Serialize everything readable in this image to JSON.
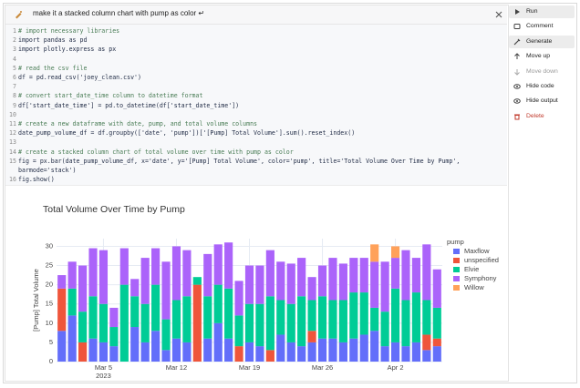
{
  "prompt": "make it a stacked column chart with pump as color ↵",
  "code": [
    {
      "number": 1,
      "text": "# import necessary libraries"
    },
    {
      "number": 2,
      "text": "import pandas as pd"
    },
    {
      "number": 3,
      "text": "import plotly.express as px"
    },
    {
      "number": 4
    },
    {
      "number": 5,
      "text": "# read the csv file"
    },
    {
      "number": 6,
      "text": "df = pd.read_csv('joey_clean.csv')"
    },
    {
      "number": 7
    },
    {
      "number": 8,
      "text": "# convert start_date_time column to datetime format"
    },
    {
      "number": 9,
      "text": "df['start_date_time'] = pd.to_datetime(df['start_date_time'])"
    },
    {
      "number": 10
    },
    {
      "number": 11,
      "text": "# create a new dataframe with date, pump, and total volume columns"
    },
    {
      "number": 12,
      "text": "date_pump_volume_df = df.groupby(['date', 'pump'])['[Pump] Total Volume'].sum().reset_index()"
    },
    {
      "number": 13
    },
    {
      "number": 14,
      "text": "# create a stacked column chart of total volume over time with pump as color"
    },
    {
      "number": 15,
      "text": "fig = px.bar(date_pump_volume_df, x='date', y='[Pump] Total Volume', color='pump', title='Total Volume Over Time by Pump',"
    },
    {
      "text": "barmode='stack')"
    },
    {
      "number": 16,
      "text": "fig.show()"
    }
  ],
  "menu": [
    "Run",
    "Comment",
    "Generate",
    "Move up",
    "Move down",
    "Hide code",
    "Hide output",
    "Delete"
  ],
  "chart_data": {
    "type": "stacked_bar",
    "title": "Total Volume Over Time by Pump",
    "ylabel": "[Pump] Total Volume",
    "legend_title": "pump",
    "legend_position": "right",
    "x": [
      "2023-03-01",
      "2023-03-02",
      "2023-03-03",
      "2023-03-04",
      "2023-03-05",
      "2023-03-06",
      "2023-03-07",
      "2023-03-08",
      "2023-03-09",
      "2023-03-10",
      "2023-03-11",
      "2023-03-12",
      "2023-03-13",
      "2023-03-14",
      "2023-03-15",
      "2023-03-16",
      "2023-03-17",
      "2023-03-18",
      "2023-03-19",
      "2023-03-20",
      "2023-03-21",
      "2023-03-22",
      "2023-03-23",
      "2023-03-24",
      "2023-03-25",
      "2023-03-26",
      "2023-03-27",
      "2023-03-28",
      "2023-03-29",
      "2023-03-30",
      "2023-03-31",
      "2023-04-01",
      "2023-04-02",
      "2023-04-03",
      "2023-04-04",
      "2023-04-05",
      "2023-04-06"
    ],
    "xlim": [
      "2023-02-28T12:00Z",
      "2023-04-06T12:00Z"
    ],
    "xticks": [
      {
        "value": "2023-03-05",
        "label": "Mar 5"
      },
      {
        "value": "2023-03-12",
        "label": "Mar 12"
      },
      {
        "value": "2023-03-19",
        "label": "Mar 19"
      },
      {
        "value": "2023-03-26",
        "label": "Mar 26"
      },
      {
        "value": "2023-04-02",
        "label": "Apr 2"
      }
    ],
    "x_tick_year": "2023",
    "ylim": [
      0,
      32
    ],
    "yticks": [
      0,
      5,
      10,
      15,
      20,
      25,
      30
    ],
    "grid": true,
    "series": [
      {
        "name": "Maxflow",
        "color": "#636efa",
        "values": [
          8,
          12,
          null,
          6,
          5,
          4,
          null,
          9,
          5,
          8,
          3,
          6,
          5,
          null,
          6,
          10,
          6,
          null,
          5,
          4,
          null,
          7,
          5,
          4,
          5,
          6,
          6,
          5,
          6,
          7,
          8,
          4,
          5,
          4,
          5,
          3,
          4
        ]
      },
      {
        "name": "unspecified",
        "color": "#ef553b",
        "values": [
          11,
          null,
          5,
          null,
          null,
          null,
          null,
          null,
          null,
          null,
          null,
          null,
          null,
          20,
          null,
          null,
          null,
          4,
          null,
          null,
          3,
          null,
          null,
          null,
          3,
          null,
          null,
          null,
          null,
          null,
          null,
          null,
          null,
          null,
          null,
          4,
          2
        ]
      },
      {
        "name": "Elvie",
        "color": "#00cc96",
        "values": [
          null,
          7,
          8,
          11,
          10,
          5,
          20,
          8,
          10,
          12,
          8,
          10,
          12,
          2,
          11,
          10,
          13,
          8,
          10,
          11,
          14,
          9,
          10,
          13,
          8,
          11,
          10,
          11,
          12,
          11,
          6,
          9,
          14,
          12,
          13,
          9,
          8
        ]
      },
      {
        "name": "Symphony",
        "color": "#ab63fa",
        "values": [
          3.5,
          7,
          12,
          12.5,
          14,
          5,
          9.5,
          4.5,
          12,
          9.5,
          15,
          14,
          12,
          null,
          11,
          10.5,
          12,
          9,
          10,
          10,
          12,
          10,
          10.5,
          10,
          6,
          8,
          11,
          9.5,
          9,
          9,
          12,
          13,
          8,
          13,
          9,
          14.5,
          10
        ]
      },
      {
        "name": "Willow",
        "color": "#ffa15a",
        "values": [
          null,
          null,
          null,
          null,
          null,
          null,
          null,
          null,
          null,
          null,
          null,
          null,
          null,
          null,
          null,
          null,
          null,
          null,
          null,
          null,
          null,
          null,
          null,
          null,
          null,
          null,
          null,
          null,
          null,
          null,
          4.5,
          null,
          3,
          null,
          null,
          null,
          null
        ]
      }
    ]
  }
}
